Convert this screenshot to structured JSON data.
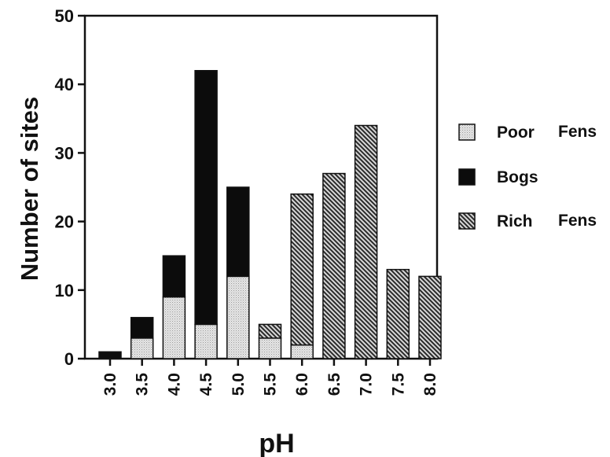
{
  "chart_data": {
    "type": "bar",
    "stacked": true,
    "xlabel": "pH",
    "ylabel": "Number of sites",
    "ylim": [
      0,
      50
    ],
    "yticks": [
      "0",
      "10",
      "20",
      "30",
      "40",
      "50"
    ],
    "categories": [
      "3.0",
      "3.5",
      "4.0",
      "4.5",
      "5.0",
      "5.5",
      "6.0",
      "6.5",
      "7.0",
      "7.5",
      "8.0"
    ],
    "series": [
      {
        "name": "Poor Fens",
        "pattern": "dotted-light",
        "values": [
          0,
          3,
          9,
          5,
          12,
          3,
          2,
          0,
          0,
          0,
          0
        ]
      },
      {
        "name": "Bogs",
        "pattern": "solid-black",
        "values": [
          1,
          3,
          6,
          37,
          13,
          0,
          0,
          0,
          0,
          0,
          0
        ]
      },
      {
        "name": "Rich Fens",
        "pattern": "diagonal-hatch",
        "values": [
          0,
          0,
          0,
          0,
          0,
          2,
          22,
          27,
          34,
          13,
          12
        ]
      }
    ],
    "legend": {
      "position": "right",
      "items": [
        {
          "word1": "Poor",
          "word2": "Fens",
          "pattern": "dotted-light"
        },
        {
          "word1": "Bogs",
          "word2": "",
          "pattern": "solid-black"
        },
        {
          "word1": "Rich",
          "word2": "Fens",
          "pattern": "diagonal-hatch"
        }
      ]
    },
    "grid": false
  }
}
